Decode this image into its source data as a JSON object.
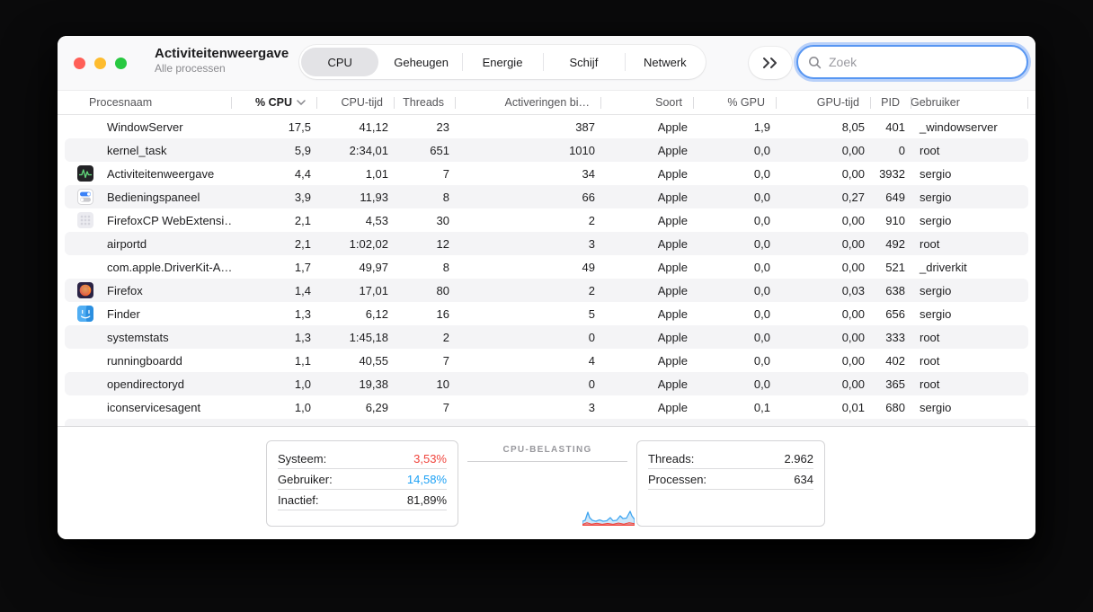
{
  "window": {
    "title": "Activiteitenweergave",
    "subtitle": "Alle processen"
  },
  "toolbar": {
    "tabs": [
      {
        "label": "CPU",
        "selected": true
      },
      {
        "label": "Geheugen",
        "selected": false
      },
      {
        "label": "Energie",
        "selected": false
      },
      {
        "label": "Schijf",
        "selected": false
      },
      {
        "label": "Netwerk",
        "selected": false
      }
    ],
    "overflow_icon": "chevron-double-right",
    "search_placeholder": "Zoek"
  },
  "table": {
    "columns": [
      {
        "key": "name",
        "label": "Procesnaam",
        "align": "left",
        "sorted": false
      },
      {
        "key": "cpu",
        "label": "% CPU",
        "align": "right",
        "sorted": true
      },
      {
        "key": "cpu_time",
        "label": "CPU-tijd",
        "align": "right",
        "sorted": false
      },
      {
        "key": "threads",
        "label": "Threads",
        "align": "right",
        "sorted": false
      },
      {
        "key": "activations",
        "label": "Activeringen bi…",
        "align": "right",
        "sorted": false
      },
      {
        "key": "kind",
        "label": "Soort",
        "align": "right",
        "sorted": false
      },
      {
        "key": "gpu",
        "label": "% GPU",
        "align": "right",
        "sorted": false
      },
      {
        "key": "gpu_time",
        "label": "GPU-tijd",
        "align": "right",
        "sorted": false
      },
      {
        "key": "pid",
        "label": "PID",
        "align": "right",
        "sorted": false
      },
      {
        "key": "user",
        "label": "Gebruiker",
        "align": "left",
        "sorted": false
      }
    ],
    "rows": [
      {
        "icon": null,
        "name": "WindowServer",
        "cpu": "17,5",
        "cpu_time": "41,12",
        "threads": "23",
        "activations": "387",
        "kind": "Apple",
        "gpu": "1,9",
        "gpu_time": "8,05",
        "pid": "401",
        "user": "_windowserver"
      },
      {
        "icon": null,
        "name": "kernel_task",
        "cpu": "5,9",
        "cpu_time": "2:34,01",
        "threads": "651",
        "activations": "1010",
        "kind": "Apple",
        "gpu": "0,0",
        "gpu_time": "0,00",
        "pid": "0",
        "user": "root"
      },
      {
        "icon": "activity-monitor",
        "name": "Activiteitenweergave",
        "cpu": "4,4",
        "cpu_time": "1,01",
        "threads": "7",
        "activations": "34",
        "kind": "Apple",
        "gpu": "0,0",
        "gpu_time": "0,00",
        "pid": "3932",
        "user": "sergio"
      },
      {
        "icon": "control-center",
        "name": "Bedieningspaneel",
        "cpu": "3,9",
        "cpu_time": "11,93",
        "threads": "8",
        "activations": "66",
        "kind": "Apple",
        "gpu": "0,0",
        "gpu_time": "0,27",
        "pid": "649",
        "user": "sergio"
      },
      {
        "icon": "generic-app",
        "name": "FirefoxCP WebExtensi…",
        "cpu": "2,1",
        "cpu_time": "4,53",
        "threads": "30",
        "activations": "2",
        "kind": "Apple",
        "gpu": "0,0",
        "gpu_time": "0,00",
        "pid": "910",
        "user": "sergio"
      },
      {
        "icon": null,
        "name": "airportd",
        "cpu": "2,1",
        "cpu_time": "1:02,02",
        "threads": "12",
        "activations": "3",
        "kind": "Apple",
        "gpu": "0,0",
        "gpu_time": "0,00",
        "pid": "492",
        "user": "root"
      },
      {
        "icon": null,
        "name": "com.apple.DriverKit-A…",
        "cpu": "1,7",
        "cpu_time": "49,97",
        "threads": "8",
        "activations": "49",
        "kind": "Apple",
        "gpu": "0,0",
        "gpu_time": "0,00",
        "pid": "521",
        "user": "_driverkit"
      },
      {
        "icon": "firefox",
        "name": "Firefox",
        "cpu": "1,4",
        "cpu_time": "17,01",
        "threads": "80",
        "activations": "2",
        "kind": "Apple",
        "gpu": "0,0",
        "gpu_time": "0,03",
        "pid": "638",
        "user": "sergio"
      },
      {
        "icon": "finder",
        "name": "Finder",
        "cpu": "1,3",
        "cpu_time": "6,12",
        "threads": "16",
        "activations": "5",
        "kind": "Apple",
        "gpu": "0,0",
        "gpu_time": "0,00",
        "pid": "656",
        "user": "sergio"
      },
      {
        "icon": null,
        "name": "systemstats",
        "cpu": "1,3",
        "cpu_time": "1:45,18",
        "threads": "2",
        "activations": "0",
        "kind": "Apple",
        "gpu": "0,0",
        "gpu_time": "0,00",
        "pid": "333",
        "user": "root"
      },
      {
        "icon": null,
        "name": "runningboardd",
        "cpu": "1,1",
        "cpu_time": "40,55",
        "threads": "7",
        "activations": "4",
        "kind": "Apple",
        "gpu": "0,0",
        "gpu_time": "0,00",
        "pid": "402",
        "user": "root"
      },
      {
        "icon": null,
        "name": "opendirectoryd",
        "cpu": "1,0",
        "cpu_time": "19,38",
        "threads": "10",
        "activations": "0",
        "kind": "Apple",
        "gpu": "0,0",
        "gpu_time": "0,00",
        "pid": "365",
        "user": "root"
      },
      {
        "icon": null,
        "name": "iconservicesagent",
        "cpu": "1,0",
        "cpu_time": "6,29",
        "threads": "7",
        "activations": "3",
        "kind": "Apple",
        "gpu": "0,1",
        "gpu_time": "0,01",
        "pid": "680",
        "user": "sergio"
      }
    ]
  },
  "footer": {
    "cpu_stats": [
      {
        "label": "Systeem:",
        "value": "3,53%",
        "color": "#f0443c"
      },
      {
        "label": "Gebruiker:",
        "value": "14,58%",
        "color": "#1da1f5"
      },
      {
        "label": "Inactief:",
        "value": "81,89%",
        "color": "#1d1d1f"
      }
    ],
    "graph_title": "CPU-BELASTING",
    "totals": [
      {
        "label": "Threads:",
        "value": "2.962"
      },
      {
        "label": "Processen:",
        "value": "634"
      }
    ]
  },
  "colors": {
    "traffic_red": "#ff5f57",
    "traffic_yellow": "#febc2e",
    "traffic_green": "#28c840",
    "accent_red": "#f0443c",
    "accent_blue": "#1da1f5",
    "stripe": "#f4f4f6",
    "focus_ring": "#5796f2"
  }
}
